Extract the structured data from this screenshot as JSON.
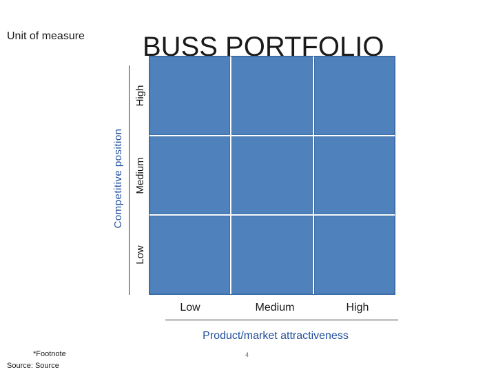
{
  "unit_label": "Unit of measure",
  "title": "BUSS PORTFOLIO",
  "y_axis": {
    "title": "Competitive position",
    "ticks": {
      "low": "Low",
      "medium": "Medium",
      "high": "High"
    }
  },
  "x_axis": {
    "title": "Product/market attractiveness",
    "ticks": {
      "low": "Low",
      "medium": "Medium",
      "high": "High"
    }
  },
  "footnote": "*Footnote",
  "source": "Source:  Source",
  "page_number": "4",
  "colors": {
    "cell_fill": "#4f81bd",
    "axis_title": "#1f4e9b"
  }
}
